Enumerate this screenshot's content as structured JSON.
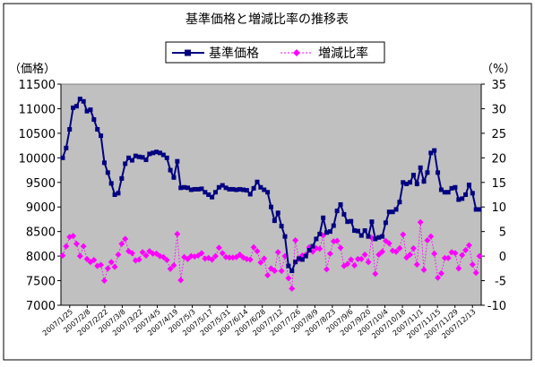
{
  "chart_data": {
    "type": "line",
    "title": "基準価格と増減比率の推移表",
    "ylabel": "（価格）",
    "y2label": "（%）",
    "ylim": [
      7000,
      11500
    ],
    "y2lim": [
      -10,
      35
    ],
    "yticks": [
      7000,
      7500,
      8000,
      8500,
      9000,
      9500,
      10000,
      10500,
      11000,
      11500
    ],
    "y2ticks": [
      -10,
      -5,
      0,
      5,
      10,
      15,
      20,
      25,
      30,
      35
    ],
    "xticklabels": [
      "2007/1/25",
      "2007/2/8",
      "2007/2/22",
      "2007/3/8",
      "2007/3/22",
      "2007/4/5",
      "2007/4/19",
      "2007/5/3",
      "2007/5/17",
      "2007/5/31",
      "2007/6/14",
      "2007/6/28",
      "2007/7/12",
      "2007/7/26",
      "2007/8/9",
      "2007/8/23",
      "2007/9/6",
      "2007/9/20",
      "2007/10/4",
      "2007/10/18",
      "2007/11/1",
      "2007/11/15",
      "2007/11/29",
      "2007/12/13"
    ],
    "legend_position": "top",
    "grid": false,
    "plot_background": "#c0c0c0",
    "series": [
      {
        "name": "基準価格",
        "axis": "left",
        "color": "#000080",
        "marker": "square",
        "values": [
          10000,
          10200,
          10580,
          11020,
          11050,
          11200,
          11150,
          10950,
          10980,
          10780,
          10580,
          10450,
          9900,
          9700,
          9480,
          9250,
          9280,
          9580,
          9880,
          10000,
          9950,
          10040,
          10020,
          10010,
          9960,
          10080,
          10100,
          10120,
          10100,
          10060,
          10000,
          9750,
          9600,
          9930,
          9390,
          9400,
          9390,
          9350,
          9360,
          9360,
          9370,
          9300,
          9250,
          9200,
          9300,
          9400,
          9440,
          9390,
          9360,
          9360,
          9350,
          9360,
          9350,
          9340,
          9260,
          9380,
          9510,
          9400,
          9350,
          9300,
          9000,
          8720,
          8880,
          8610,
          8400,
          7800,
          7700,
          7880,
          7950,
          7930,
          8000,
          8120,
          8200,
          8350,
          8450,
          8780,
          8480,
          8500,
          8620,
          8920,
          9050,
          8850,
          8700,
          8710,
          8520,
          8510,
          8420,
          8520,
          8400,
          8700,
          8350,
          8380,
          8400,
          8680,
          8900,
          8900,
          8950,
          9100,
          9500,
          9470,
          9500,
          9650,
          9470,
          9800,
          9520,
          9700,
          10100,
          10150,
          9700,
          9350,
          9300,
          9300,
          9380,
          9400,
          9150,
          9170,
          9250,
          9450,
          9280,
          8950,
          8950
        ]
      },
      {
        "name": "増減比率",
        "axis": "right",
        "color": "#ff00ff",
        "marker": "diamond",
        "line": "dotted",
        "values": [
          0.1,
          2.0,
          3.9,
          4.1,
          2.5,
          0.0,
          2.0,
          -0.6,
          -1.2,
          -0.8,
          -2.0,
          -1.8,
          -5.0,
          -2.5,
          -1.2,
          -2.2,
          0.3,
          2.5,
          3.5,
          1.0,
          0.6,
          -0.9,
          -0.7,
          0.8,
          0.1,
          1.0,
          0.5,
          0.5,
          0.0,
          -0.2,
          -0.8,
          -2.6,
          -1.9,
          4.5,
          -4.9,
          -0.2,
          -0.6,
          0.0,
          -0.1,
          0.1,
          0.6,
          -0.5,
          -0.4,
          -0.7,
          0.0,
          1.7,
          0.6,
          -0.2,
          -0.3,
          -0.3,
          -0.2,
          0.3,
          -0.3,
          -0.6,
          -0.7,
          1.8,
          1.0,
          -1.3,
          -0.5,
          -3.9,
          -2.5,
          -3.0,
          0.8,
          -3.0,
          0.0,
          -4.5,
          -6.6,
          3.2,
          -0.6,
          0.1,
          0.3,
          1.8,
          0.9,
          1.6,
          1.5,
          4.2,
          -2.7,
          0.5,
          3.0,
          3.1,
          1.7,
          -2.0,
          -1.6,
          -0.7,
          -1.9,
          -0.6,
          -0.6,
          0.3,
          -1.2,
          3.7,
          -3.6,
          0.3,
          0.9,
          3.1,
          2.6,
          1.1,
          0.9,
          1.6,
          4.4,
          -0.3,
          0.3,
          1.6,
          -1.7,
          6.9,
          -2.8,
          3.2,
          4.0,
          0.5,
          -4.4,
          -3.5,
          -0.4,
          -0.4,
          0.8,
          0.6,
          -2.5,
          0.2,
          1.2,
          2.2,
          -1.7,
          -3.4,
          0.0
        ]
      }
    ]
  }
}
